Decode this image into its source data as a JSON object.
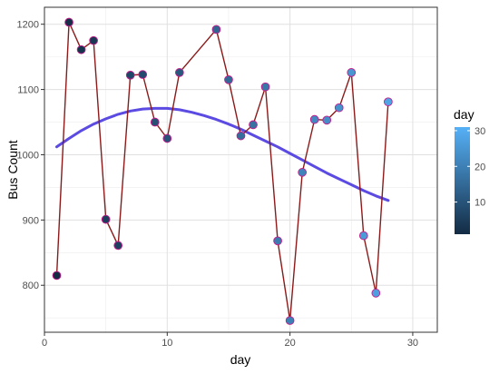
{
  "chart_data": {
    "type": "line",
    "title": "",
    "xlabel": "day",
    "ylabel": "Bus Count",
    "xlim": [
      0,
      32
    ],
    "ylim": [
      728,
      1226
    ],
    "xticks": [
      0,
      10,
      20,
      30
    ],
    "yticks": [
      800,
      900,
      1000,
      1100,
      1200
    ],
    "grid": true,
    "series": [
      {
        "type": "line+points",
        "x": [
          1,
          2,
          3,
          4,
          5,
          6,
          7,
          8,
          9,
          10,
          11,
          14,
          15,
          16,
          17,
          18,
          19,
          20,
          21,
          22,
          23,
          24,
          25,
          26,
          27,
          28
        ],
        "y": [
          815,
          1203,
          1161,
          1175,
          901,
          861,
          1122,
          1123,
          1050,
          1025,
          1126,
          1192,
          1115,
          1029,
          1046,
          1104,
          868,
          746,
          973,
          1054,
          1053,
          1072,
          1126,
          876,
          788,
          1081
        ],
        "line_color": "#8B1A1A",
        "point_color_by": "day"
      },
      {
        "type": "smooth",
        "x": [
          1,
          2,
          3,
          4,
          5,
          6,
          7,
          8,
          9,
          10,
          11,
          12,
          13,
          14,
          15,
          16,
          17,
          18,
          19,
          20,
          21,
          22,
          23,
          24,
          25,
          26,
          27,
          28
        ],
        "y": [
          1012,
          1025,
          1037,
          1047,
          1055,
          1062,
          1067,
          1070,
          1071,
          1071,
          1069,
          1065,
          1060,
          1054,
          1047,
          1039,
          1030,
          1021,
          1012,
          1002,
          992,
          982,
          972,
          963,
          954,
          945,
          937,
          930
        ],
        "color": "#5B4BE3"
      }
    ],
    "legend": {
      "title": "day",
      "placement": "right",
      "type": "colorbar",
      "range": [
        1,
        31
      ],
      "ticks": [
        10,
        20,
        30
      ],
      "color_low": "#132B43",
      "color_high": "#56B1F7"
    }
  }
}
